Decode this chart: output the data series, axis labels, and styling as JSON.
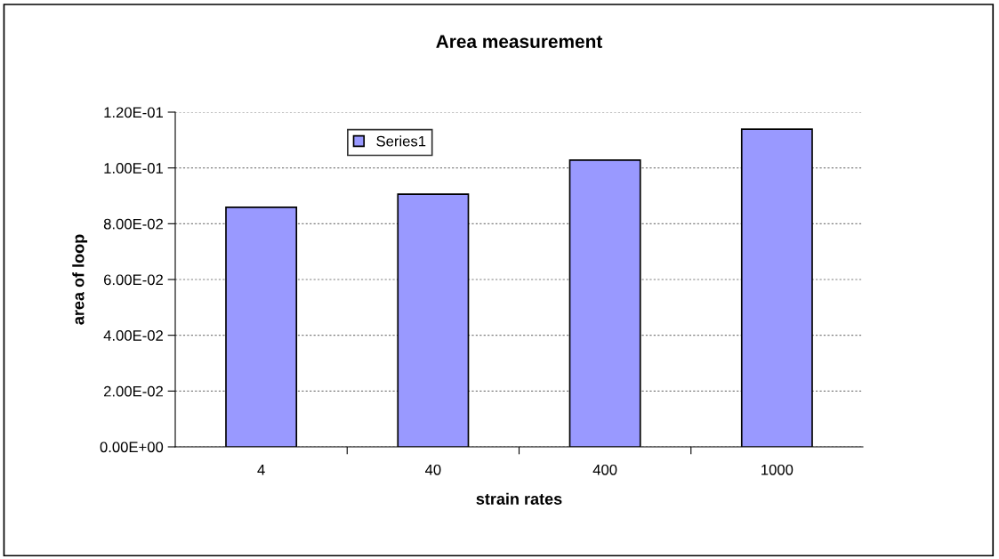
{
  "chart_data": {
    "type": "bar",
    "title": "Area measurement",
    "xlabel": "strain rates",
    "ylabel": "area of loop",
    "categories": [
      "4",
      "40",
      "400",
      "1000"
    ],
    "series": [
      {
        "name": "Series1",
        "color": "#9999ff",
        "values": [
          0.0859,
          0.0906,
          0.1028,
          0.1139
        ]
      }
    ],
    "ylim": [
      0,
      0.12
    ],
    "yticks": [
      {
        "value": 0,
        "label": "0.00E+00"
      },
      {
        "value": 0.02,
        "label": "2.00E-02"
      },
      {
        "value": 0.04,
        "label": "4.00E-02"
      },
      {
        "value": 0.06,
        "label": "6.00E-02"
      },
      {
        "value": 0.08,
        "label": "8.00E-02"
      },
      {
        "value": 0.1,
        "label": "1.00E-01"
      },
      {
        "value": 0.12,
        "label": "1.20E-01"
      }
    ],
    "grid": "y",
    "legend": "top"
  }
}
